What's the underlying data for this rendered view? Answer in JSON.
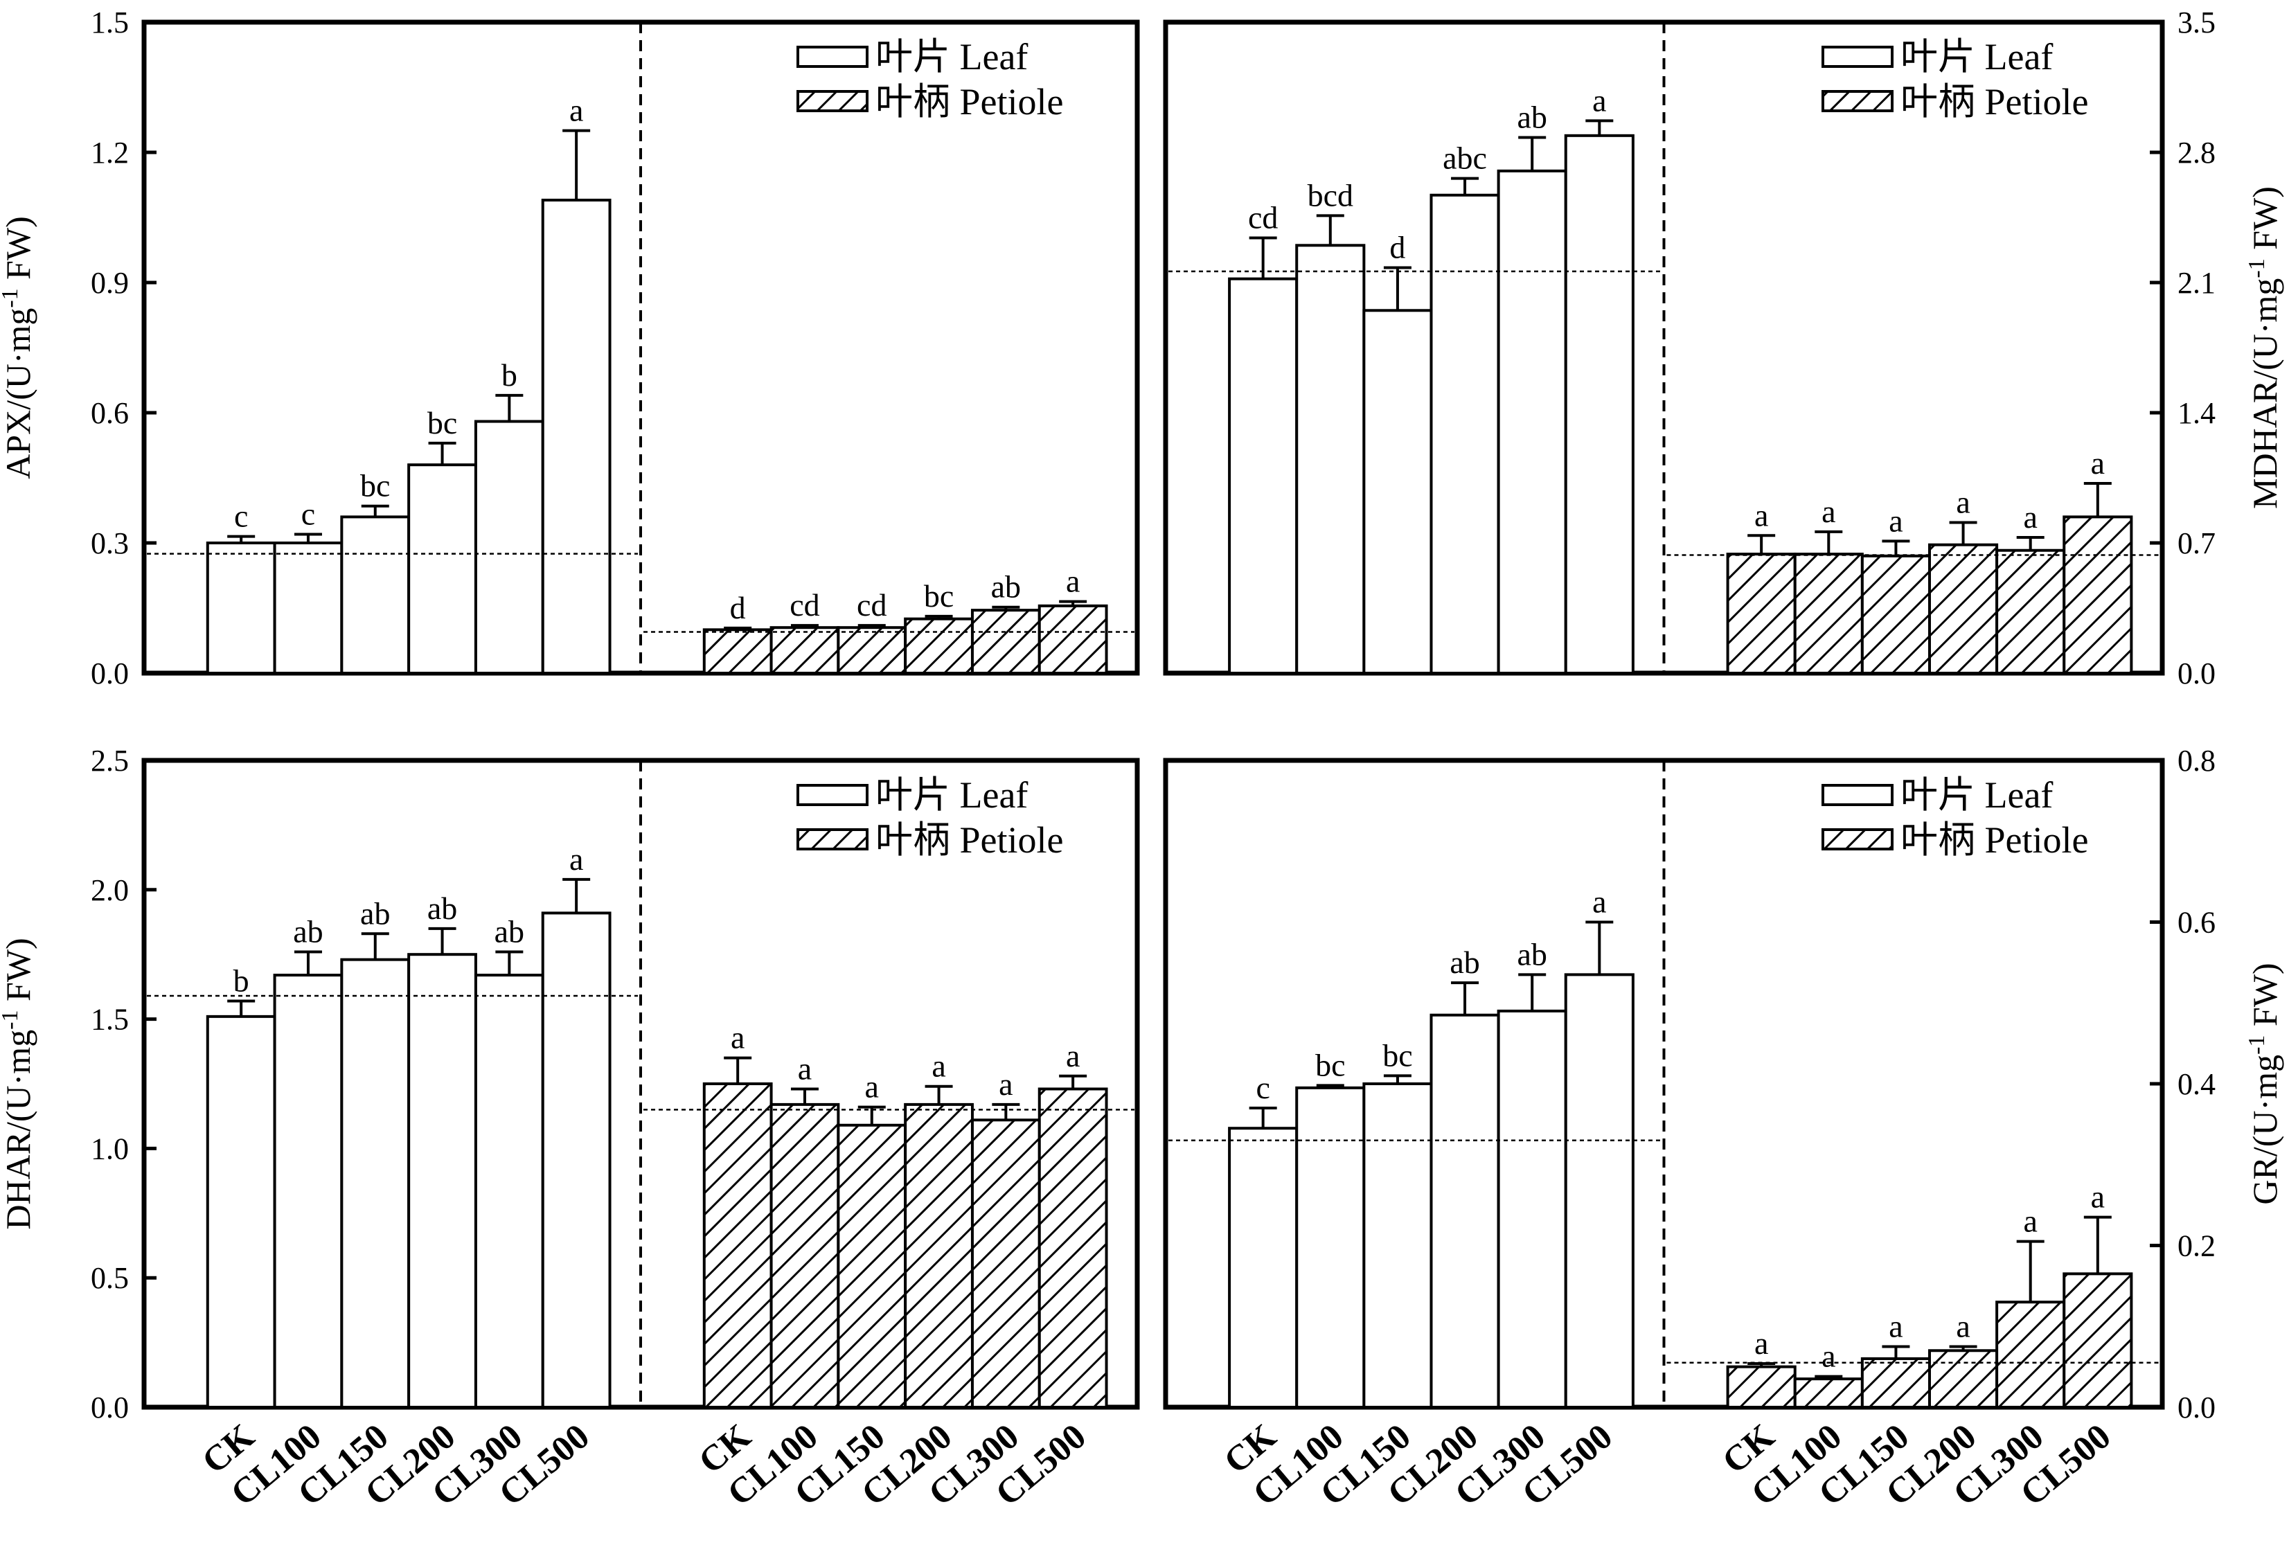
{
  "legend": {
    "leaf": "叶片 Leaf",
    "petiole": "叶柄 Petiole"
  },
  "chart_data": [
    {
      "type": "bar",
      "panel": "top-left",
      "ylabel": "APX/(U·mg-1 FW)",
      "ylabel_parts": {
        "main": "APX/(U·mg",
        "sup": "-1",
        "tail": " FW)"
      },
      "axis_side": "left",
      "ylim": [
        0,
        1.5
      ],
      "yticks": [
        "0.0",
        "0.3",
        "0.6",
        "0.9",
        "1.2",
        "1.5"
      ],
      "categories": [
        "CK",
        "CL100",
        "CL150",
        "CL200",
        "CL300",
        "CL500"
      ],
      "series": [
        {
          "name": "叶片 Leaf",
          "values": [
            0.3,
            0.3,
            0.36,
            0.48,
            0.58,
            1.09
          ],
          "errors": [
            0.015,
            0.02,
            0.025,
            0.05,
            0.06,
            0.16
          ],
          "labels": [
            "c",
            "c",
            "bc",
            "bc",
            "b",
            "a"
          ],
          "mean": 0.275
        },
        {
          "name": "叶柄 Petiole",
          "values": [
            0.1,
            0.105,
            0.105,
            0.125,
            0.145,
            0.155
          ],
          "errors": [
            0.004,
            0.005,
            0.005,
            0.006,
            0.007,
            0.01
          ],
          "labels": [
            "d",
            "cd",
            "cd",
            "bc",
            "ab",
            "a"
          ],
          "mean": 0.095
        }
      ]
    },
    {
      "type": "bar",
      "panel": "top-right",
      "ylabel": "MDHAR/(U·mg-1 FW)",
      "ylabel_parts": {
        "main": "MDHAR/(U·mg",
        "sup": "-1",
        "tail": " FW)"
      },
      "axis_side": "right",
      "ylim": [
        0,
        3.5
      ],
      "yticks": [
        "0.0",
        "0.7",
        "1.4",
        "2.1",
        "2.8",
        "3.5"
      ],
      "categories": [
        "CK",
        "CL100",
        "CL150",
        "CL200",
        "CL300",
        "CL500"
      ],
      "series": [
        {
          "name": "叶片 Leaf",
          "values": [
            2.12,
            2.3,
            1.95,
            2.57,
            2.7,
            2.89
          ],
          "errors": [
            0.22,
            0.16,
            0.23,
            0.09,
            0.18,
            0.08
          ],
          "labels": [
            "cd",
            "bcd",
            "d",
            "abc",
            "ab",
            "a"
          ],
          "mean": 2.16
        },
        {
          "name": "叶柄 Petiole",
          "values": [
            0.64,
            0.64,
            0.63,
            0.69,
            0.66,
            0.84
          ],
          "errors": [
            0.1,
            0.12,
            0.08,
            0.12,
            0.07,
            0.18
          ],
          "labels": [
            "a",
            "a",
            "a",
            "a",
            "a",
            "a"
          ],
          "mean": 0.635
        }
      ]
    },
    {
      "type": "bar",
      "panel": "bottom-left",
      "ylabel": "DHAR/(U·mg-1 FW)",
      "ylabel_parts": {
        "main": "DHAR/(U·mg",
        "sup": "-1",
        "tail": " FW)"
      },
      "axis_side": "left",
      "ylim": [
        0,
        2.5
      ],
      "yticks": [
        "0.0",
        "0.5",
        "1.0",
        "1.5",
        "2.0",
        "2.5"
      ],
      "categories": [
        "CK",
        "CL100",
        "CL150",
        "CL200",
        "CL300",
        "CL500"
      ],
      "series": [
        {
          "name": "叶片 Leaf",
          "values": [
            1.51,
            1.67,
            1.73,
            1.75,
            1.67,
            1.91
          ],
          "errors": [
            0.06,
            0.09,
            0.1,
            0.1,
            0.09,
            0.13
          ],
          "labels": [
            "b",
            "ab",
            "ab",
            "ab",
            "ab",
            "a"
          ],
          "mean": 1.59
        },
        {
          "name": "叶柄 Petiole",
          "values": [
            1.25,
            1.17,
            1.09,
            1.17,
            1.11,
            1.23
          ],
          "errors": [
            0.1,
            0.06,
            0.07,
            0.07,
            0.06,
            0.05
          ],
          "labels": [
            "a",
            "a",
            "a",
            "a",
            "a",
            "a"
          ],
          "mean": 1.15
        }
      ]
    },
    {
      "type": "bar",
      "panel": "bottom-right",
      "ylabel": "GR/(U·mg-1 FW)",
      "ylabel_parts": {
        "main": "GR/(U·mg",
        "sup": "-1",
        "tail": " FW)"
      },
      "axis_side": "right",
      "ylim": [
        0,
        0.8
      ],
      "yticks": [
        "0.0",
        "0.2",
        "0.4",
        "0.6",
        "0.8"
      ],
      "categories": [
        "CK",
        "CL100",
        "CL150",
        "CL200",
        "CL300",
        "CL500"
      ],
      "series": [
        {
          "name": "叶片 Leaf",
          "values": [
            0.345,
            0.395,
            0.4,
            0.485,
            0.49,
            0.535
          ],
          "errors": [
            0.025,
            0.003,
            0.01,
            0.04,
            0.045,
            0.065
          ],
          "labels": [
            "c",
            "bc",
            "bc",
            "ab",
            "ab",
            "a"
          ],
          "mean": 0.33
        },
        {
          "name": "叶柄 Petiole",
          "values": [
            0.05,
            0.035,
            0.06,
            0.07,
            0.13,
            0.165
          ],
          "errors": [
            0.004,
            0.003,
            0.015,
            0.005,
            0.075,
            0.07
          ],
          "labels": [
            "a",
            "a",
            "a",
            "a",
            "a",
            "a"
          ],
          "mean": 0.055
        }
      ]
    }
  ]
}
